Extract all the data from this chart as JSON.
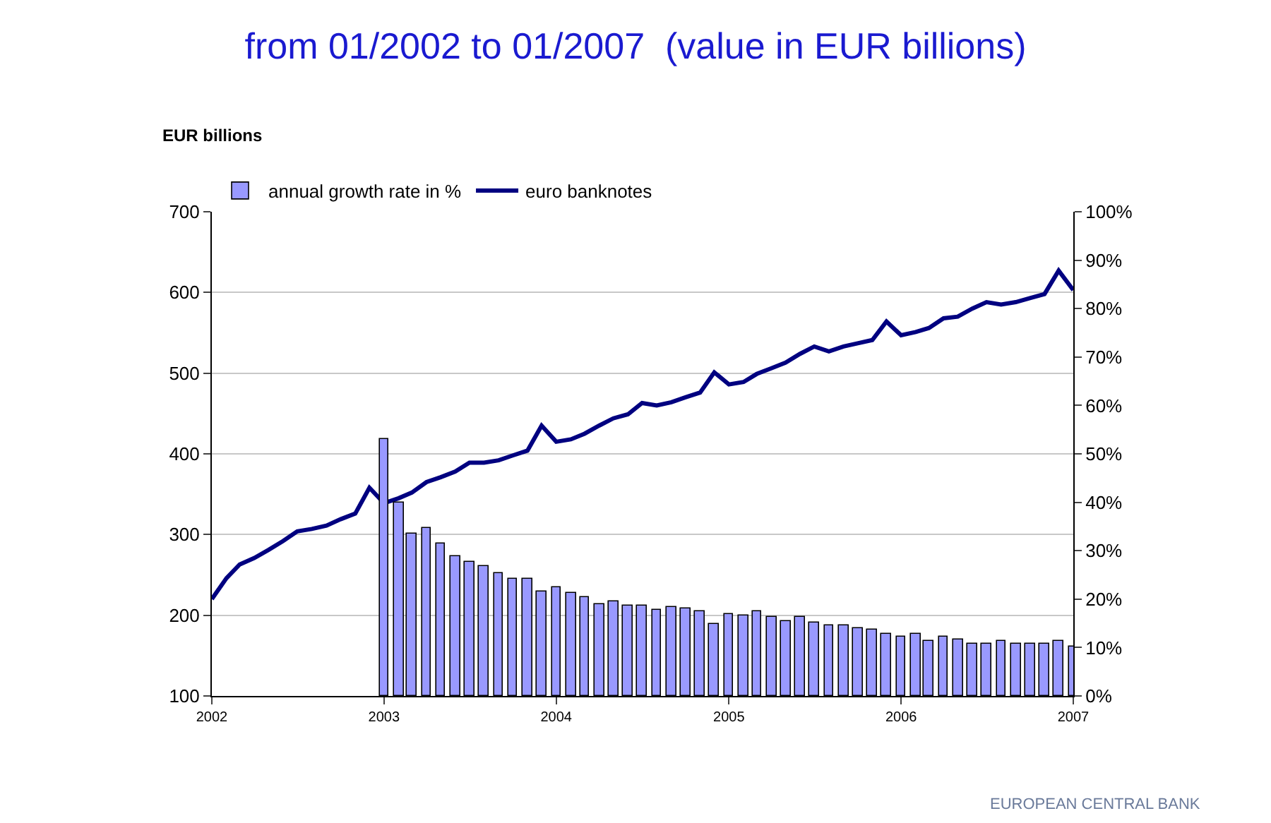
{
  "chart_data": {
    "type": "bar",
    "title": "from 01/2002 to 01/2007  (value in EUR billions)",
    "ylabel": "EUR billions",
    "annotations": [
      "EUROPEAN CENTRAL BANK"
    ],
    "xlim": [
      "2002-01",
      "2007-01"
    ],
    "xticks": [
      {
        "value": "2002-01",
        "label": "2002"
      },
      {
        "value": "2003-01",
        "label": "2003"
      },
      {
        "value": "2004-01",
        "label": "2004"
      },
      {
        "value": "2005-01",
        "label": "2005"
      },
      {
        "value": "2006-01",
        "label": "2006"
      },
      {
        "value": "2007-01",
        "label": "2007"
      }
    ],
    "ylim": [
      100,
      700
    ],
    "yticks": [
      100,
      200,
      300,
      400,
      500,
      600,
      700
    ],
    "y2lim": [
      0,
      100
    ],
    "y2ticks": [
      {
        "value": 0,
        "label": "0%"
      },
      {
        "value": 10,
        "label": "10%"
      },
      {
        "value": 20,
        "label": "20%"
      },
      {
        "value": 30,
        "label": "30%"
      },
      {
        "value": 40,
        "label": "40%"
      },
      {
        "value": 50,
        "label": "50%"
      },
      {
        "value": 60,
        "label": "60%"
      },
      {
        "value": 70,
        "label": "70%"
      },
      {
        "value": 80,
        "label": "80%"
      },
      {
        "value": 90,
        "label": "90%"
      },
      {
        "value": 100,
        "label": "100%"
      }
    ],
    "grid": "y",
    "legend": "top left",
    "series": [
      {
        "name": "annual growth rate in %",
        "axis": "y2",
        "color": "#9999ff",
        "x": [
          "2003-01",
          "2003-02",
          "2003-03",
          "2003-04",
          "2003-05",
          "2003-06",
          "2003-07",
          "2003-08",
          "2003-09",
          "2003-10",
          "2003-11",
          "2003-12",
          "2004-01",
          "2004-02",
          "2004-03",
          "2004-04",
          "2004-05",
          "2004-06",
          "2004-07",
          "2004-08",
          "2004-09",
          "2004-10",
          "2004-11",
          "2004-12",
          "2005-01",
          "2005-02",
          "2005-03",
          "2005-04",
          "2005-05",
          "2005-06",
          "2005-07",
          "2005-08",
          "2005-09",
          "2005-10",
          "2005-11",
          "2005-12",
          "2006-01",
          "2006-02",
          "2006-03",
          "2006-04",
          "2006-05",
          "2006-06",
          "2006-07",
          "2006-08",
          "2006-09",
          "2006-10",
          "2006-11",
          "2006-12",
          "2007-01"
        ],
        "values": [
          53.2,
          40.0,
          33.4,
          34.8,
          31.4,
          28.9,
          27.8,
          26.9,
          25.5,
          24.1,
          24.1,
          21.6,
          22.4,
          21.2,
          20.4,
          18.9,
          19.6,
          18.8,
          18.6,
          17.8,
          18.4,
          18.2,
          17.4,
          14.9,
          16.9,
          16.6,
          17.4,
          16.3,
          15.4,
          16.4,
          15.3,
          14.6,
          14.6,
          13.9,
          13.6,
          12.7,
          12.3,
          12.7,
          11.3,
          12.2,
          11.6,
          10.9,
          10.7,
          11.4,
          10.7,
          10.9,
          10.7,
          11.3,
          10.1
        ]
      },
      {
        "name": "euro banknotes",
        "type": "line",
        "color": "#000080",
        "x": [
          "2002-01",
          "2002-02",
          "2002-03",
          "2002-04",
          "2002-05",
          "2002-06",
          "2002-07",
          "2002-08",
          "2002-09",
          "2002-10",
          "2002-11",
          "2002-12",
          "2003-01",
          "2003-02",
          "2003-03",
          "2003-04",
          "2003-05",
          "2003-06",
          "2003-07",
          "2003-08",
          "2003-09",
          "2003-10",
          "2003-11",
          "2003-12",
          "2004-01",
          "2004-02",
          "2004-03",
          "2004-04",
          "2004-05",
          "2004-06",
          "2004-07",
          "2004-08",
          "2004-09",
          "2004-10",
          "2004-11",
          "2004-12",
          "2005-01",
          "2005-02",
          "2005-03",
          "2005-04",
          "2005-05",
          "2005-06",
          "2005-07",
          "2005-08",
          "2005-09",
          "2005-10",
          "2005-11",
          "2005-12",
          "2006-01",
          "2006-02",
          "2006-03",
          "2006-04",
          "2006-05",
          "2006-06",
          "2006-07",
          "2006-08",
          "2006-09",
          "2006-10",
          "2006-11",
          "2006-12",
          "2007-01"
        ],
        "values": [
          220,
          246,
          263,
          271,
          281,
          292,
          304,
          307,
          311,
          319,
          326,
          358,
          339,
          345,
          352,
          365,
          371,
          378,
          389,
          389,
          392,
          398,
          404,
          435,
          415,
          418,
          425,
          435,
          444,
          449,
          463,
          460,
          464,
          470,
          476,
          501,
          486,
          489,
          499,
          506,
          513,
          524,
          533,
          527,
          533,
          537,
          541,
          564,
          547,
          551,
          556,
          568,
          570,
          580,
          588,
          585,
          588,
          593,
          598,
          627,
          603
        ]
      }
    ]
  }
}
